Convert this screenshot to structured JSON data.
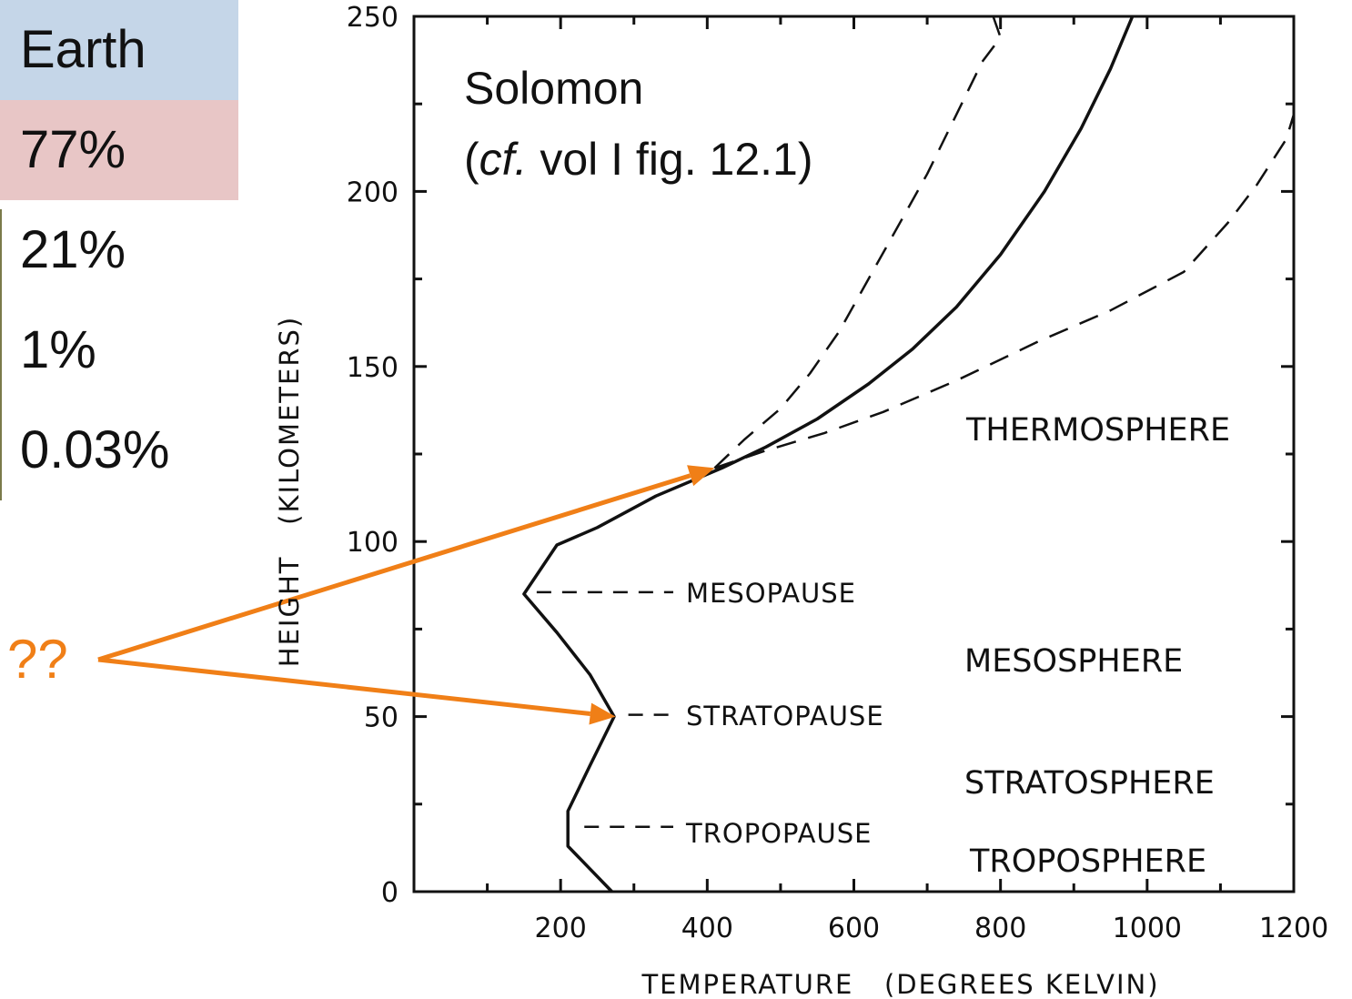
{
  "sidebar": {
    "cells": [
      {
        "text": "Earth",
        "color": "#c5d6e8"
      },
      {
        "text": "77%",
        "color": "#e8c6c6"
      },
      {
        "text": "21%",
        "color": "#ffffff"
      },
      {
        "text": "1%",
        "color": "#ffffff"
      },
      {
        "text": "0.03%",
        "color": "#ffffff"
      }
    ]
  },
  "callout": {
    "label": "??",
    "color": "#f07f17",
    "arrow_targets": [
      {
        "temperature": 410,
        "height": 121
      },
      {
        "temperature": 275,
        "height": 50
      }
    ]
  },
  "annotation": {
    "line1": "Solomon",
    "line2_open": "(",
    "line2_italic": "cf.",
    "line2_rest": " vol I fig. 12.1)"
  },
  "chart_data": {
    "type": "line",
    "xlabel": "TEMPERATURE   (DEGREES KELVIN)",
    "ylabel": "HEIGHT   (KILOMETERS)",
    "xlim": [
      0,
      1200
    ],
    "ylim": [
      0,
      250
    ],
    "x_ticks": [
      200,
      400,
      600,
      800,
      1000,
      1200
    ],
    "y_ticks": [
      0,
      50,
      100,
      150,
      200,
      250
    ],
    "series": [
      {
        "style": "solid",
        "points": [
          [
            270,
            0
          ],
          [
            210,
            13
          ],
          [
            210,
            23
          ],
          [
            240,
            36
          ],
          [
            273,
            50
          ],
          [
            240,
            62
          ],
          [
            195,
            74
          ],
          [
            150,
            85
          ],
          [
            195,
            99
          ],
          [
            250,
            104
          ],
          [
            330,
            113
          ],
          [
            420,
            121
          ],
          [
            480,
            127
          ],
          [
            550,
            135
          ],
          [
            620,
            145
          ],
          [
            680,
            155
          ],
          [
            740,
            167
          ],
          [
            800,
            182
          ],
          [
            860,
            200
          ],
          [
            910,
            218
          ],
          [
            950,
            235
          ],
          [
            980,
            250
          ]
        ]
      },
      {
        "style": "dashed",
        "points": [
          [
            410,
            121
          ],
          [
            450,
            129
          ],
          [
            500,
            138
          ],
          [
            540,
            148
          ],
          [
            580,
            160
          ],
          [
            620,
            175
          ],
          [
            660,
            190
          ],
          [
            700,
            205
          ],
          [
            740,
            222
          ],
          [
            775,
            237
          ],
          [
            800,
            244
          ],
          [
            790,
            250
          ]
        ]
      },
      {
        "style": "dashed",
        "points": [
          [
            410,
            121
          ],
          [
            480,
            126
          ],
          [
            560,
            131
          ],
          [
            640,
            137
          ],
          [
            740,
            146
          ],
          [
            850,
            157
          ],
          [
            950,
            166
          ],
          [
            1050,
            177
          ],
          [
            1110,
            191
          ],
          [
            1150,
            202
          ],
          [
            1190,
            215
          ],
          [
            1200,
            222
          ]
        ]
      }
    ],
    "layer_labels": [
      "THERMOSPHERE",
      "MESOSPHERE",
      "STRATOSPHERE",
      "TROPOSPHERE"
    ],
    "pause_labels": [
      {
        "text": "MESOPAUSE",
        "height": 85,
        "temperature": 150
      },
      {
        "text": "STRATOPAUSE",
        "height": 50,
        "temperature": 275
      },
      {
        "text": "TROPOPAUSE",
        "height": 18,
        "temperature": 215
      }
    ]
  }
}
